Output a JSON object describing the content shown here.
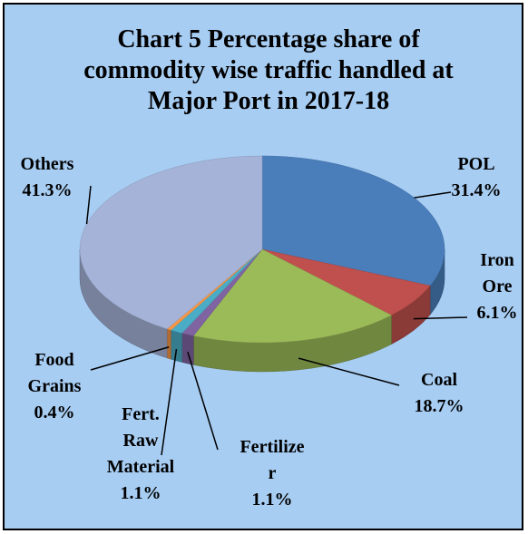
{
  "chart_data": {
    "type": "pie3d",
    "title": "Chart 5 Percentage share of commodity wise traffic handled at Major Port in 2017-18",
    "categories": [
      "POL",
      "Iron Ore",
      "Coal",
      "Fertilizer",
      "Fert. Raw Material",
      "Food Grains",
      "Others"
    ],
    "values": [
      31.4,
      6.1,
      18.7,
      1.1,
      1.1,
      0.4,
      41.3
    ],
    "value_labels": [
      "31.4%",
      "6.1%",
      "18.7%",
      "1.1%",
      "1.1%",
      "0.4%",
      "41.3%"
    ],
    "colors": [
      "#4a7ebb",
      "#c0504d",
      "#9bbb59",
      "#8064a2",
      "#4bacc6",
      "#f79646",
      "#a5b3d8"
    ]
  }
}
